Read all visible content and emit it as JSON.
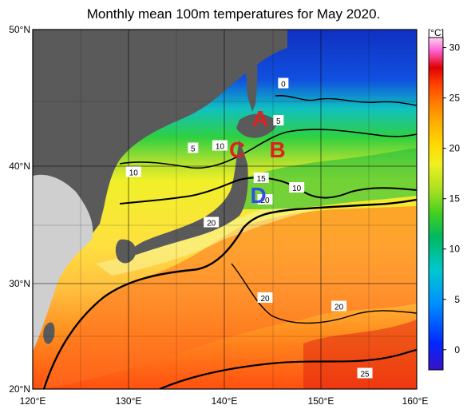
{
  "title": "Monthly mean 100m temperatures for May 2020.",
  "colorbar": {
    "unit": "[°C]",
    "ticks": [
      "30",
      "25",
      "20",
      "15",
      "10",
      "5",
      "0"
    ],
    "tick_values": [
      30,
      25,
      20,
      15,
      10,
      5,
      0
    ],
    "range": [
      -2,
      31
    ],
    "colors": [
      "#3a10c8",
      "#0028ff",
      "#0090ff",
      "#00c8d0",
      "#00b860",
      "#40d020",
      "#a8e020",
      "#f0f020",
      "#ffd800",
      "#ffb000",
      "#ff8000",
      "#ff4000",
      "#e00000",
      "#ff60d0",
      "#ffc0f0"
    ]
  },
  "axes": {
    "lat_labels": [
      "50°N",
      "40°N",
      "30°N",
      "20°N"
    ],
    "lat_values": [
      50,
      40,
      30,
      20
    ],
    "lon_labels": [
      "120°E",
      "130°E",
      "140°E",
      "150°E",
      "160°E"
    ],
    "lon_values": [
      120,
      130,
      140,
      150,
      160
    ],
    "lat_range": [
      20,
      50
    ],
    "lon_range": [
      120,
      160
    ],
    "grid": true
  },
  "contour_labels": [
    {
      "text": "0",
      "lon": 146.1,
      "lat": 45.5
    },
    {
      "text": "5",
      "lon": 145.6,
      "lat": 42.4
    },
    {
      "text": "5",
      "lon": 136.7,
      "lat": 40.1
    },
    {
      "text": "10",
      "lon": 139.5,
      "lat": 40.3
    },
    {
      "text": "10",
      "lon": 130.5,
      "lat": 38.1
    },
    {
      "text": "15",
      "lon": 143.8,
      "lat": 37.6
    },
    {
      "text": "10",
      "lon": 147.5,
      "lat": 36.8
    },
    {
      "text": "20",
      "lon": 144.2,
      "lat": 35.8
    },
    {
      "text": "20",
      "lon": 138.6,
      "lat": 33.9
    },
    {
      "text": "20",
      "lon": 144.2,
      "lat": 27.6
    },
    {
      "text": "20",
      "lon": 151.9,
      "lat": 26.9
    },
    {
      "text": "25",
      "lon": 154.6,
      "lat": 21.3
    }
  ],
  "region_letters": [
    {
      "text": "A",
      "lon": 143.7,
      "lat": 42.6,
      "color": "#e02020"
    },
    {
      "text": "B",
      "lon": 145.5,
      "lat": 40.0,
      "color": "#e02020"
    },
    {
      "text": "C",
      "lon": 141.3,
      "lat": 40.0,
      "color": "#e02020"
    },
    {
      "text": "D",
      "lon": 143.5,
      "lat": 36.2,
      "color": "#3050e0"
    }
  ]
}
